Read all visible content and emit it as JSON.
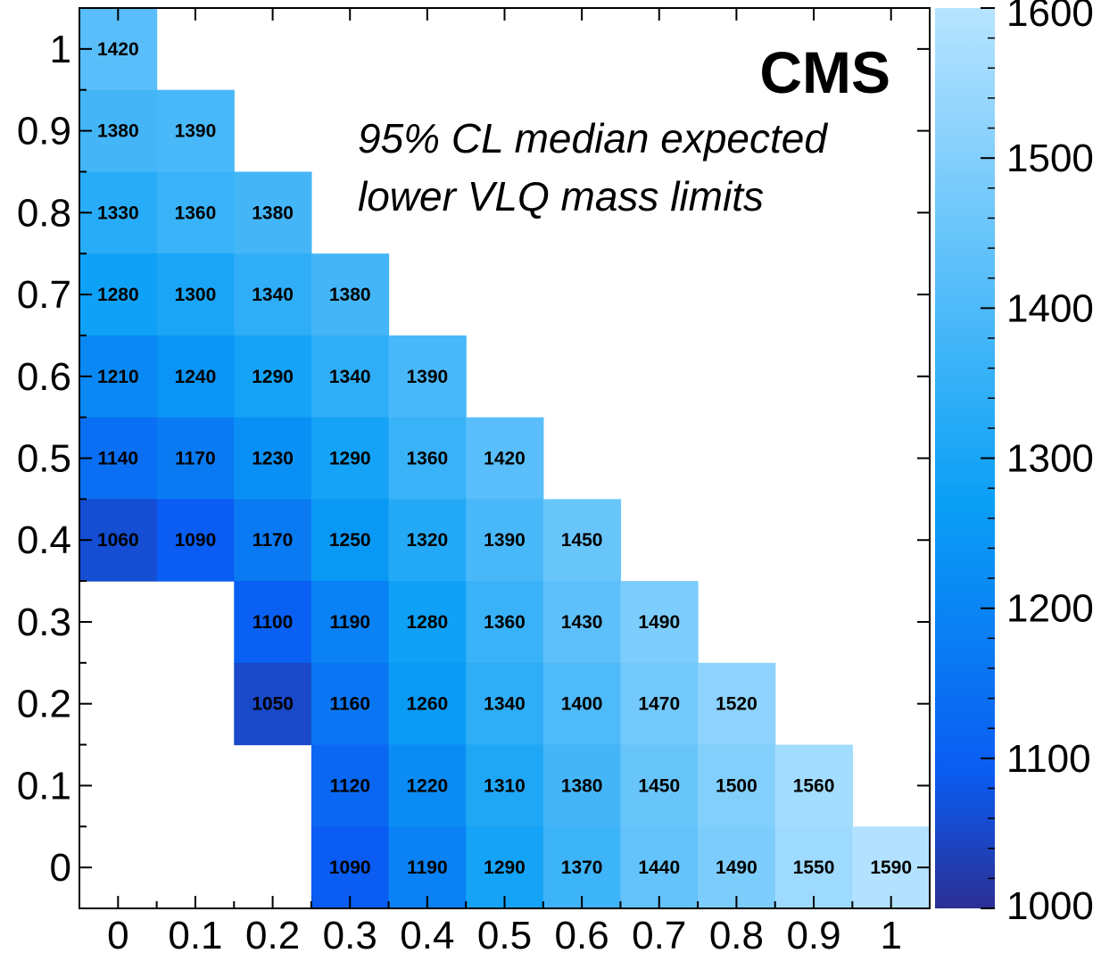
{
  "chart_data": {
    "type": "heatmap",
    "title": "",
    "xlabel": "",
    "ylabel": "",
    "zlabel": "",
    "xlim": [
      -0.05,
      1.05
    ],
    "ylim": [
      -0.05,
      1.05
    ],
    "zlim": [
      1000,
      1600
    ],
    "x_ticks": [
      "0",
      "0.1",
      "0.2",
      "0.3",
      "0.4",
      "0.5",
      "0.6",
      "0.7",
      "0.8",
      "0.9",
      "1"
    ],
    "y_ticks": [
      "0",
      "0.1",
      "0.2",
      "0.3",
      "0.4",
      "0.5",
      "0.6",
      "0.7",
      "0.8",
      "0.9",
      "1"
    ],
    "z_ticks": [
      "1000",
      "1100",
      "1200",
      "1300",
      "1400",
      "1500",
      "1600"
    ],
    "colormap": [
      "#2b2f94",
      "#0a5cf2",
      "#0a9ff5",
      "#b7e4ff"
    ],
    "annotations": {
      "experiment": "CMS",
      "caption_line1": "95% CL median expected",
      "caption_line2": "lower VLQ mass limits"
    },
    "cells": [
      {
        "x": 0.0,
        "y": 1.0,
        "value": 1420
      },
      {
        "x": 0.0,
        "y": 0.9,
        "value": 1380
      },
      {
        "x": 0.1,
        "y": 0.9,
        "value": 1390
      },
      {
        "x": 0.0,
        "y": 0.8,
        "value": 1330
      },
      {
        "x": 0.1,
        "y": 0.8,
        "value": 1360
      },
      {
        "x": 0.2,
        "y": 0.8,
        "value": 1380
      },
      {
        "x": 0.0,
        "y": 0.7,
        "value": 1280
      },
      {
        "x": 0.1,
        "y": 0.7,
        "value": 1300
      },
      {
        "x": 0.2,
        "y": 0.7,
        "value": 1340
      },
      {
        "x": 0.3,
        "y": 0.7,
        "value": 1380
      },
      {
        "x": 0.0,
        "y": 0.6,
        "value": 1210
      },
      {
        "x": 0.1,
        "y": 0.6,
        "value": 1240
      },
      {
        "x": 0.2,
        "y": 0.6,
        "value": 1290
      },
      {
        "x": 0.3,
        "y": 0.6,
        "value": 1340
      },
      {
        "x": 0.4,
        "y": 0.6,
        "value": 1390
      },
      {
        "x": 0.0,
        "y": 0.5,
        "value": 1140
      },
      {
        "x": 0.1,
        "y": 0.5,
        "value": 1170
      },
      {
        "x": 0.2,
        "y": 0.5,
        "value": 1230
      },
      {
        "x": 0.3,
        "y": 0.5,
        "value": 1290
      },
      {
        "x": 0.4,
        "y": 0.5,
        "value": 1360
      },
      {
        "x": 0.5,
        "y": 0.5,
        "value": 1420
      },
      {
        "x": 0.0,
        "y": 0.4,
        "value": 1060
      },
      {
        "x": 0.1,
        "y": 0.4,
        "value": 1090
      },
      {
        "x": 0.2,
        "y": 0.4,
        "value": 1170
      },
      {
        "x": 0.3,
        "y": 0.4,
        "value": 1250
      },
      {
        "x": 0.4,
        "y": 0.4,
        "value": 1320
      },
      {
        "x": 0.5,
        "y": 0.4,
        "value": 1390
      },
      {
        "x": 0.6,
        "y": 0.4,
        "value": 1450
      },
      {
        "x": 0.2,
        "y": 0.3,
        "value": 1100
      },
      {
        "x": 0.3,
        "y": 0.3,
        "value": 1190
      },
      {
        "x": 0.4,
        "y": 0.3,
        "value": 1280
      },
      {
        "x": 0.5,
        "y": 0.3,
        "value": 1360
      },
      {
        "x": 0.6,
        "y": 0.3,
        "value": 1430
      },
      {
        "x": 0.7,
        "y": 0.3,
        "value": 1490
      },
      {
        "x": 0.2,
        "y": 0.2,
        "value": 1050
      },
      {
        "x": 0.3,
        "y": 0.2,
        "value": 1160
      },
      {
        "x": 0.4,
        "y": 0.2,
        "value": 1260
      },
      {
        "x": 0.5,
        "y": 0.2,
        "value": 1340
      },
      {
        "x": 0.6,
        "y": 0.2,
        "value": 1400
      },
      {
        "x": 0.7,
        "y": 0.2,
        "value": 1470
      },
      {
        "x": 0.8,
        "y": 0.2,
        "value": 1520
      },
      {
        "x": 0.3,
        "y": 0.1,
        "value": 1120
      },
      {
        "x": 0.4,
        "y": 0.1,
        "value": 1220
      },
      {
        "x": 0.5,
        "y": 0.1,
        "value": 1310
      },
      {
        "x": 0.6,
        "y": 0.1,
        "value": 1380
      },
      {
        "x": 0.7,
        "y": 0.1,
        "value": 1450
      },
      {
        "x": 0.8,
        "y": 0.1,
        "value": 1500
      },
      {
        "x": 0.9,
        "y": 0.1,
        "value": 1560
      },
      {
        "x": 0.3,
        "y": 0.0,
        "value": 1090
      },
      {
        "x": 0.4,
        "y": 0.0,
        "value": 1190
      },
      {
        "x": 0.5,
        "y": 0.0,
        "value": 1290
      },
      {
        "x": 0.6,
        "y": 0.0,
        "value": 1370
      },
      {
        "x": 0.7,
        "y": 0.0,
        "value": 1440
      },
      {
        "x": 0.8,
        "y": 0.0,
        "value": 1490
      },
      {
        "x": 0.9,
        "y": 0.0,
        "value": 1550
      },
      {
        "x": 1.0,
        "y": 0.0,
        "value": 1590
      }
    ]
  }
}
